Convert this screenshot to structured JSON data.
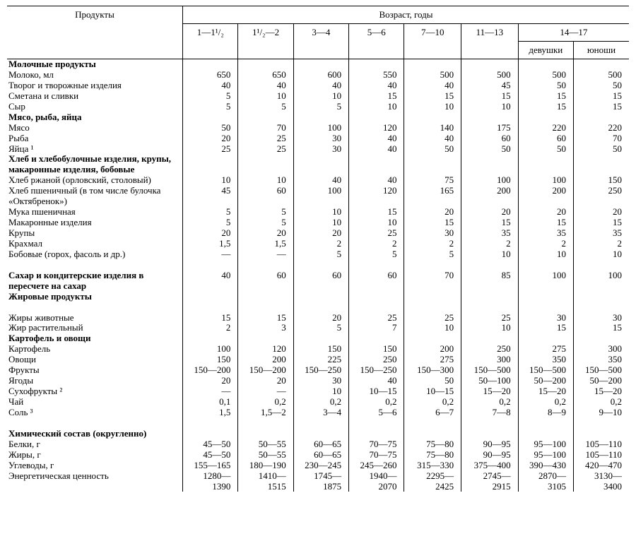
{
  "header": {
    "products": "Продукты",
    "age_label": "Возраст, годы",
    "ages": [
      "1—1¹/₂",
      "1¹/₂—2",
      "3—4",
      "5—6",
      "7—10",
      "11—13"
    ],
    "age_14_17": "14—17",
    "girls": "девушки",
    "boys": "юноши"
  },
  "sections": [
    {
      "kind": "header",
      "label": "Молочные продукты"
    },
    {
      "kind": "row",
      "label": "Молоко, мл",
      "v": [
        "650",
        "650",
        "600",
        "550",
        "500",
        "500",
        "500",
        "500"
      ]
    },
    {
      "kind": "row",
      "label": "Творог и творожные изделия",
      "v": [
        "40",
        "40",
        "40",
        "40",
        "40",
        "45",
        "50",
        "50"
      ]
    },
    {
      "kind": "row",
      "label": "Сметана и сливки",
      "v": [
        "5",
        "10",
        "10",
        "15",
        "15",
        "15",
        "15",
        "15"
      ]
    },
    {
      "kind": "row",
      "label": "Сыр",
      "v": [
        "5",
        "5",
        "5",
        "10",
        "10",
        "10",
        "15",
        "15"
      ]
    },
    {
      "kind": "header",
      "label": "Мясо, рыба, яйца"
    },
    {
      "kind": "row",
      "label": "Мясо",
      "v": [
        "50",
        "70",
        "100",
        "120",
        "140",
        "175",
        "220",
        "220"
      ]
    },
    {
      "kind": "row",
      "label": "Рыба",
      "v": [
        "20",
        "25",
        "30",
        "40",
        "40",
        "60",
        "60",
        "70"
      ]
    },
    {
      "kind": "row",
      "label": "Яйца ¹",
      "v": [
        "25",
        "25",
        "30",
        "40",
        "50",
        "50",
        "50",
        "50"
      ]
    },
    {
      "kind": "header",
      "label": "Хлеб и хлебобулочные изделия, крупы, макаронные изделия, бобовые"
    },
    {
      "kind": "row",
      "label": "Хлеб ржаной (орловский, столовый)",
      "v": [
        "10",
        "10",
        "40",
        "40",
        "75",
        "100",
        "100",
        "150"
      ]
    },
    {
      "kind": "row",
      "label": "Хлеб пшеничный (в том числе булочка «Октябренок»)",
      "v": [
        "45",
        "60",
        "100",
        "120",
        "165",
        "200",
        "200",
        "250"
      ]
    },
    {
      "kind": "row",
      "label": "Мука пшеничная",
      "v": [
        "5",
        "5",
        "10",
        "15",
        "20",
        "20",
        "20",
        "20"
      ]
    },
    {
      "kind": "row",
      "label": "Макаронные изделия",
      "v": [
        "5",
        "5",
        "10",
        "10",
        "15",
        "15",
        "15",
        "15"
      ]
    },
    {
      "kind": "row",
      "label": "Крупы",
      "v": [
        "20",
        "20",
        "20",
        "25",
        "30",
        "35",
        "35",
        "35"
      ]
    },
    {
      "kind": "row",
      "label": "Крахмал",
      "v": [
        "1,5",
        "1,5",
        "2",
        "2",
        "2",
        "2",
        "2",
        "2"
      ]
    },
    {
      "kind": "row",
      "label": "Бобовые (горох, фасоль и др.)",
      "v": [
        "—",
        "—",
        "5",
        "5",
        "5",
        "10",
        "10",
        "10"
      ]
    },
    {
      "kind": "spacer"
    },
    {
      "kind": "header-row",
      "label": "Сахар и кондитерские изделия в пересчете на сахар",
      "v": [
        "40",
        "60",
        "60",
        "60",
        "70",
        "85",
        "100",
        "100"
      ]
    },
    {
      "kind": "header",
      "label": "Жировые продукты"
    },
    {
      "kind": "spacer"
    },
    {
      "kind": "row",
      "label": "Жиры животные",
      "v": [
        "15",
        "15",
        "20",
        "25",
        "25",
        "25",
        "30",
        "30"
      ]
    },
    {
      "kind": "row",
      "label": "Жир растительный",
      "v": [
        "2",
        "3",
        "5",
        "7",
        "10",
        "10",
        "15",
        "15"
      ]
    },
    {
      "kind": "header",
      "label": "Картофель и овощи"
    },
    {
      "kind": "row",
      "label": "Картофель",
      "v": [
        "100",
        "120",
        "150",
        "150",
        "200",
        "250",
        "275",
        "300"
      ]
    },
    {
      "kind": "row",
      "label": "Овощи",
      "v": [
        "150",
        "200",
        "225",
        "250",
        "275",
        "300",
        "350",
        "350"
      ]
    },
    {
      "kind": "row",
      "label": "Фрукты",
      "v": [
        "150—200",
        "150—200",
        "150—250",
        "150—250",
        "150—300",
        "150—500",
        "150—500",
        "150—500"
      ]
    },
    {
      "kind": "row",
      "label": "Ягоды",
      "v": [
        "20",
        "20",
        "30",
        "40",
        "50",
        "50—100",
        "50—200",
        "50—200"
      ]
    },
    {
      "kind": "row",
      "label": "Сухофрукты ²",
      "v": [
        "—",
        "—",
        "10",
        "10—15",
        "10—15",
        "15—20",
        "15—20",
        "15—20"
      ]
    },
    {
      "kind": "row",
      "label": "Чай",
      "v": [
        "0,1",
        "0,2",
        "0,2",
        "0,2",
        "0,2",
        "0,2",
        "0,2",
        "0,2"
      ]
    },
    {
      "kind": "row",
      "label": "Соль ³",
      "v": [
        "1,5",
        "1,5—2",
        "3—4",
        "5—6",
        "6—7",
        "7—8",
        "8—9",
        "9—10"
      ]
    },
    {
      "kind": "spacer"
    },
    {
      "kind": "header",
      "label": "Химический состав (округленно)"
    },
    {
      "kind": "row",
      "label": "Белки, г",
      "v": [
        "45—50",
        "50—55",
        "60—65",
        "70—75",
        "75—80",
        "90—95",
        "95—100",
        "105—110"
      ]
    },
    {
      "kind": "row",
      "label": "Жиры, г",
      "v": [
        "45—50",
        "50—55",
        "60—65",
        "70—75",
        "75—80",
        "90—95",
        "95—100",
        "105—110"
      ]
    },
    {
      "kind": "row",
      "label": "Углеводы, г",
      "v": [
        "155—165",
        "180—190",
        "230—245",
        "245—260",
        "315—330",
        "375—400",
        "390—430",
        "420—470"
      ]
    },
    {
      "kind": "row2",
      "label": "Энергетическая ценность",
      "v1": [
        "1280—",
        "1410—",
        "1745—",
        "1940—",
        "2295—",
        "2745—",
        "2870—",
        "3130—"
      ],
      "v2": [
        "1390",
        "1515",
        "1875",
        "2070",
        "2425",
        "2915",
        "3105",
        "3400"
      ]
    }
  ]
}
